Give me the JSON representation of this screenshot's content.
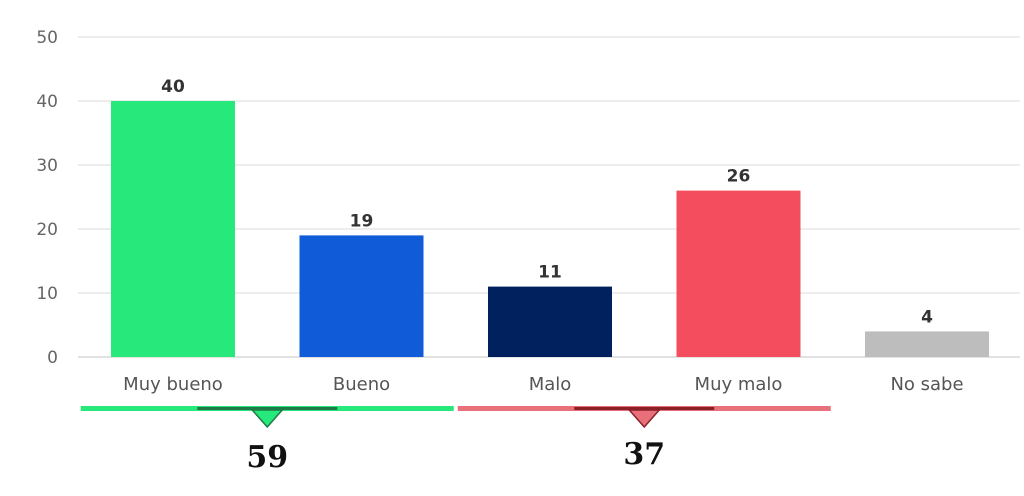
{
  "chart_data": {
    "type": "bar",
    "categories": [
      "Muy bueno",
      "Bueno",
      "Malo",
      "Muy malo",
      "No sabe"
    ],
    "values": [
      40,
      19,
      11,
      26,
      4
    ],
    "colors": [
      "#27e87a",
      "#0f5bd8",
      "#00205e",
      "#f44e5e",
      "#bdbdbd"
    ],
    "ylim": [
      0,
      50
    ],
    "yticks": [
      0,
      10,
      20,
      30,
      40,
      50
    ],
    "grid": true,
    "title": "",
    "xlabel": "",
    "ylabel": "",
    "groups": [
      {
        "categories": [
          "Muy bueno",
          "Bueno"
        ],
        "total": "59",
        "color": "#27e87a",
        "dark": "#1f7a47"
      },
      {
        "categories": [
          "Malo",
          "Muy malo"
        ],
        "total": "37",
        "color": "#e8707a",
        "dark": "#8a1f28"
      }
    ]
  }
}
